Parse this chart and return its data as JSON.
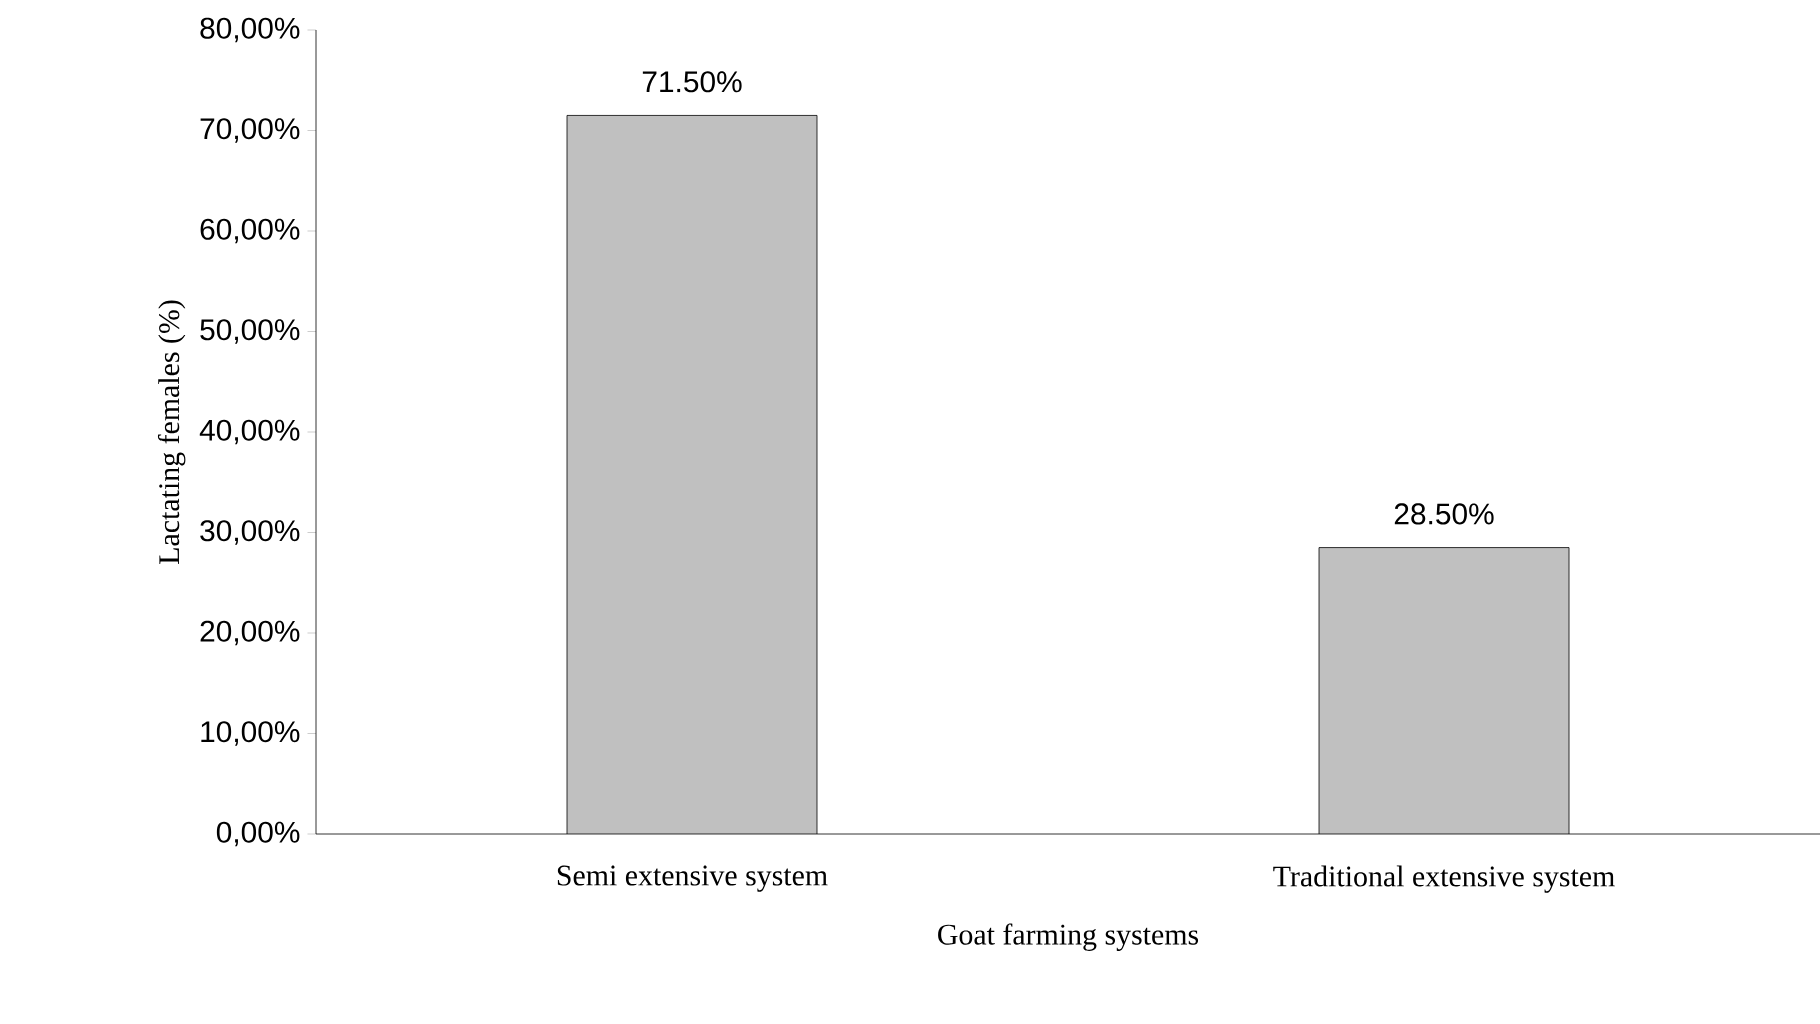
{
  "chart_data": {
    "type": "bar",
    "xlabel": "Goat farming systems",
    "ylabel": "Lactating females (%)",
    "categories": [
      "Semi extensive system",
      "Traditional extensive system"
    ],
    "values": [
      71.5,
      28.5
    ],
    "value_labels": [
      "71.50%",
      "28.50%"
    ],
    "color": "#c0c0c0",
    "ylim": [
      0,
      80
    ],
    "yticks": [
      {
        "value": 0,
        "label": "0,00%"
      },
      {
        "value": 10,
        "label": "10,00%"
      },
      {
        "value": 20,
        "label": "20,00%"
      },
      {
        "value": 30,
        "label": "30,00%"
      },
      {
        "value": 40,
        "label": "40,00%"
      },
      {
        "value": 50,
        "label": "50,00%"
      },
      {
        "value": 60,
        "label": "60,00%"
      },
      {
        "value": 70,
        "label": "70,00%"
      },
      {
        "value": 80,
        "label": "80,00%"
      }
    ],
    "grid": false
  }
}
